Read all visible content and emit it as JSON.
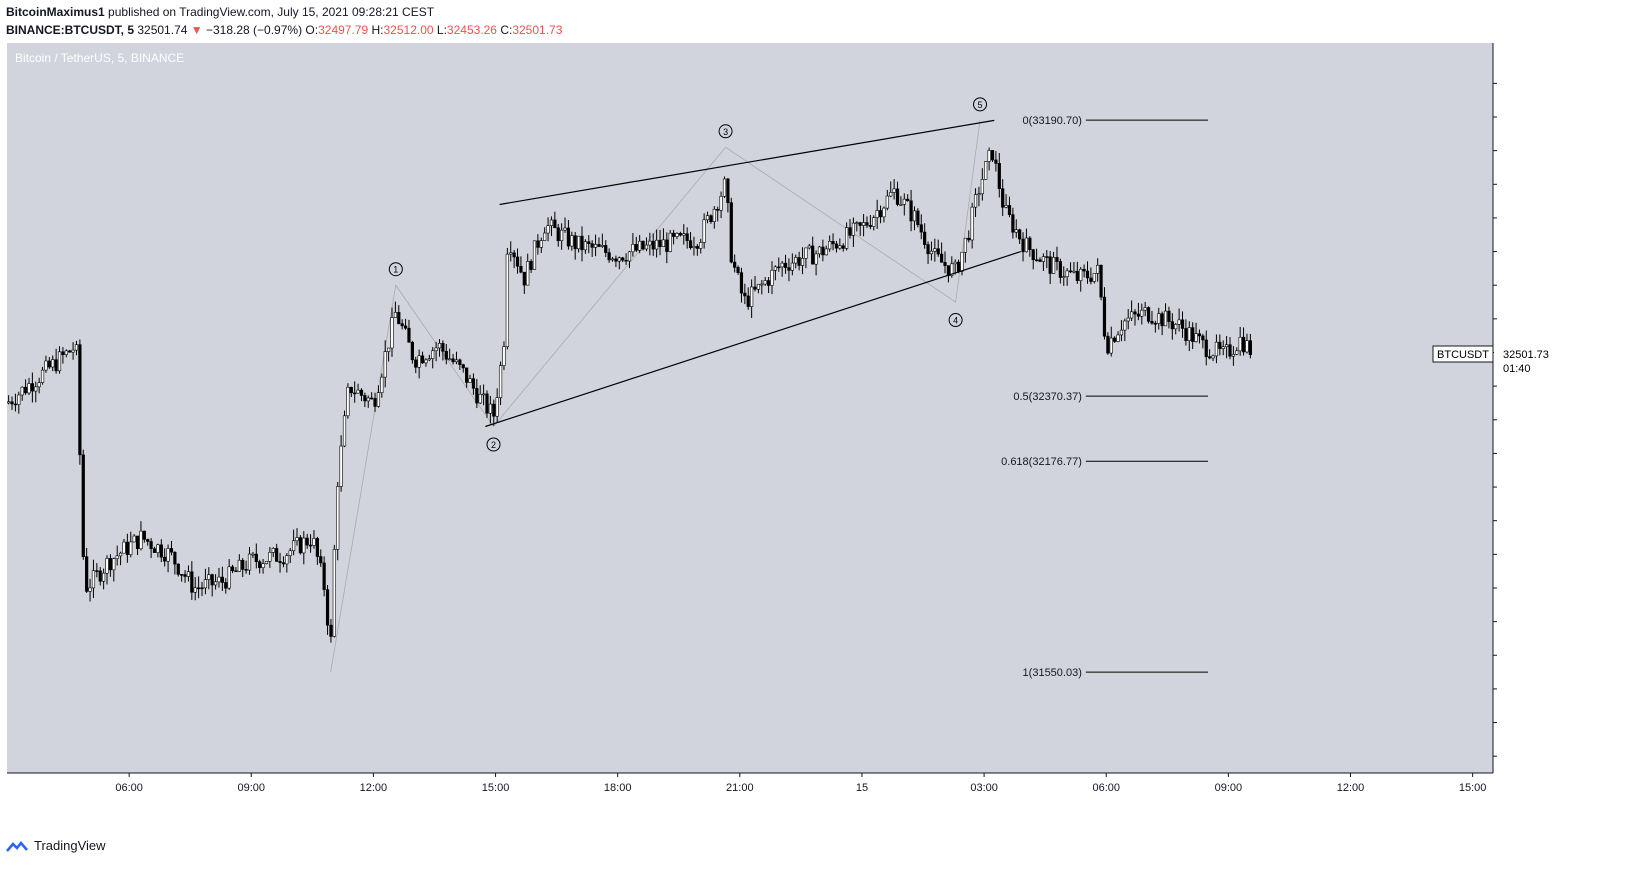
{
  "header": {
    "author": "BitcoinMaximus1",
    "published": "published on TradingView.com, July 15, 2021 09:28:21 CEST",
    "symbol_line": "BINANCE:BTCUSDT, 5",
    "last": "32501.74",
    "change": "−318.28 (−0.97%)",
    "o_label": "O:",
    "o": "32497.79",
    "h_label": "H:",
    "h": "32512.00",
    "l_label": "L:",
    "l": "32453.26",
    "c_label": "C:",
    "c": "32501.73"
  },
  "footer": {
    "brand": "TradingView"
  },
  "colors": {
    "background": "#d1d4dc",
    "candle": "#000000",
    "text_red": "#ef5350"
  },
  "chart_data": {
    "type": "candlestick",
    "title": "Bitcoin / TetherUS, 5, BINANCE",
    "currency": "USDT",
    "ylim": [
      31250,
      33420
    ],
    "y_ticks": [
      "33300.00",
      "33200.00",
      "33100.00",
      "33000.00",
      "32900.00",
      "32800.00",
      "32700.00",
      "32600.00",
      "32500.00",
      "32400.00",
      "32300.00",
      "32200.00",
      "32100.00",
      "32000.00",
      "31900.00",
      "31800.00",
      "31700.00",
      "31600.00",
      "31500.00",
      "31400.00",
      "31300.00"
    ],
    "x_ticks": [
      "06:00",
      "09:00",
      "12:00",
      "15:00",
      "18:00",
      "21:00",
      "15",
      "03:00",
      "06:00",
      "09:00",
      "12:00",
      "15:00"
    ],
    "x_tick_hours": [
      6,
      9,
      12,
      15,
      18,
      21,
      24,
      27,
      30,
      33,
      36,
      39
    ],
    "x_range_hours": [
      3.0,
      39.5
    ],
    "price_label": {
      "symbol": "BTCUSDT",
      "price": "32501.73",
      "countdown": "01:40",
      "value": 32501.73
    },
    "fib_levels": [
      {
        "label": "0(33190.70)",
        "value": 33190.7
      },
      {
        "label": "0.5(32370.37)",
        "value": 32370.37
      },
      {
        "label": "0.618(32176.77)",
        "value": 32176.77
      },
      {
        "label": "1(31550.03)",
        "value": 31550.03
      }
    ],
    "wave_labels": [
      {
        "label": "1",
        "hour": 12.55,
        "price": 32700
      },
      {
        "label": "2",
        "hour": 14.95,
        "price": 32280
      },
      {
        "label": "3",
        "hour": 20.65,
        "price": 33110
      },
      {
        "label": "4",
        "hour": 26.3,
        "price": 32650
      },
      {
        "label": "5",
        "hour": 26.9,
        "price": 33190
      }
    ],
    "wave_path": [
      {
        "hour": 10.95,
        "price": 31550
      },
      {
        "hour": 12.55,
        "price": 32700
      },
      {
        "hour": 14.95,
        "price": 32280
      },
      {
        "hour": 20.65,
        "price": 33110
      },
      {
        "hour": 26.3,
        "price": 32650
      },
      {
        "hour": 26.9,
        "price": 33190
      }
    ],
    "channel_lines": [
      {
        "from": {
          "hour": 15.1,
          "price": 32940
        },
        "to": {
          "hour": 27.25,
          "price": 33190
        }
      },
      {
        "from": {
          "hour": 14.75,
          "price": 32280
        },
        "to": {
          "hour": 27.9,
          "price": 32800
        }
      }
    ],
    "price_path": [
      {
        "hour": 3.0,
        "price": 32350
      },
      {
        "hour": 4.2,
        "price": 32470
      },
      {
        "hour": 4.7,
        "price": 32520
      },
      {
        "hour": 4.9,
        "price": 31800
      },
      {
        "hour": 5.1,
        "price": 31820
      },
      {
        "hour": 5.5,
        "price": 31880
      },
      {
        "hour": 6.3,
        "price": 31950
      },
      {
        "hour": 7.0,
        "price": 31900
      },
      {
        "hour": 7.6,
        "price": 31800
      },
      {
        "hour": 8.3,
        "price": 31820
      },
      {
        "hour": 9.0,
        "price": 31880
      },
      {
        "hour": 9.8,
        "price": 31900
      },
      {
        "hour": 10.5,
        "price": 31950
      },
      {
        "hour": 10.8,
        "price": 31800
      },
      {
        "hour": 10.95,
        "price": 31620
      },
      {
        "hour": 11.1,
        "price": 32100
      },
      {
        "hour": 11.4,
        "price": 32400
      },
      {
        "hour": 12.0,
        "price": 32350
      },
      {
        "hour": 12.55,
        "price": 32620
      },
      {
        "hour": 13.0,
        "price": 32480
      },
      {
        "hour": 13.6,
        "price": 32520
      },
      {
        "hour": 14.2,
        "price": 32440
      },
      {
        "hour": 14.7,
        "price": 32350
      },
      {
        "hour": 14.95,
        "price": 32310
      },
      {
        "hour": 15.2,
        "price": 32520
      },
      {
        "hour": 15.3,
        "price": 32850
      },
      {
        "hour": 15.7,
        "price": 32720
      },
      {
        "hour": 16.2,
        "price": 32880
      },
      {
        "hour": 17.0,
        "price": 32820
      },
      {
        "hour": 18.0,
        "price": 32790
      },
      {
        "hour": 19.0,
        "price": 32820
      },
      {
        "hour": 20.0,
        "price": 32840
      },
      {
        "hour": 20.65,
        "price": 33000
      },
      {
        "hour": 20.8,
        "price": 32780
      },
      {
        "hour": 21.1,
        "price": 32650
      },
      {
        "hour": 21.4,
        "price": 32680
      },
      {
        "hour": 22.0,
        "price": 32760
      },
      {
        "hour": 23.0,
        "price": 32800
      },
      {
        "hour": 24.0,
        "price": 32870
      },
      {
        "hour": 24.8,
        "price": 32980
      },
      {
        "hour": 25.3,
        "price": 32900
      },
      {
        "hour": 25.8,
        "price": 32780
      },
      {
        "hour": 26.3,
        "price": 32740
      },
      {
        "hour": 26.6,
        "price": 32850
      },
      {
        "hour": 26.9,
        "price": 33000
      },
      {
        "hour": 27.2,
        "price": 33100
      },
      {
        "hour": 27.5,
        "price": 32920
      },
      {
        "hour": 28.0,
        "price": 32820
      },
      {
        "hour": 28.6,
        "price": 32760
      },
      {
        "hour": 29.3,
        "price": 32720
      },
      {
        "hour": 29.8,
        "price": 32740
      },
      {
        "hour": 30.0,
        "price": 32520
      },
      {
        "hour": 30.4,
        "price": 32590
      },
      {
        "hour": 31.0,
        "price": 32620
      },
      {
        "hour": 31.8,
        "price": 32580
      },
      {
        "hour": 32.4,
        "price": 32520
      },
      {
        "hour": 32.9,
        "price": 32490
      },
      {
        "hour": 33.3,
        "price": 32540
      },
      {
        "hour": 33.6,
        "price": 32500
      }
    ]
  }
}
